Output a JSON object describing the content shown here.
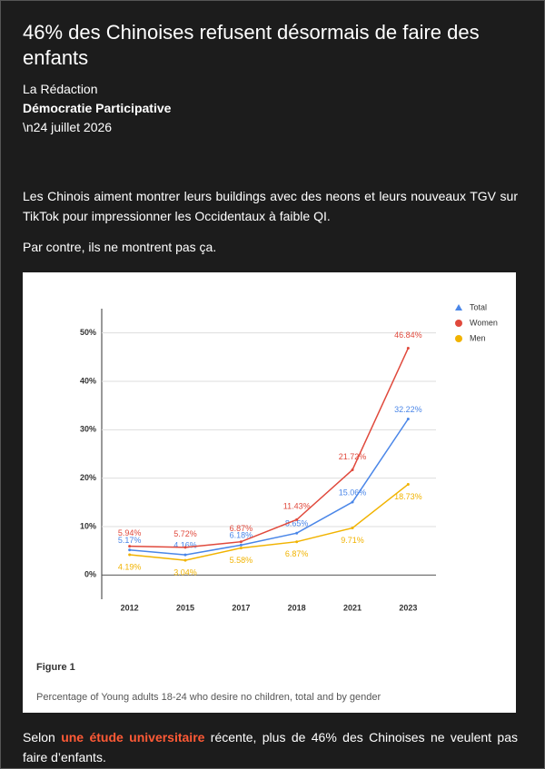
{
  "header": {
    "title": "46% des Chinoises refusent désormais de faire des enfants",
    "author": "La Rédaction",
    "publication": "Démocratie Participative",
    "date": "\\n24 juillet 2026"
  },
  "paragraphs": [
    "Les Chinois aiment montrer leurs buildings avec des neons et leurs nouveaux TGV sur TikTok pour impressionner les Occidentaux à faible QI.",
    "Par contre, ils ne montrent pas ça."
  ],
  "closing": {
    "before": "Selon ",
    "link": "une étude universitaire",
    "after": " récente, plus de 46% des Chinoises ne veulent pas faire d’enfants."
  },
  "figure": {
    "label": "Figure 1",
    "caption": "Percentage of Young adults 18-24 who desire no children, total and by gender"
  },
  "chart_data": {
    "type": "line",
    "categories": [
      "2012",
      "2015",
      "2017",
      "2018",
      "2021",
      "2023"
    ],
    "series": [
      {
        "name": "Total",
        "color": "#4a86e8",
        "values": [
          5.17,
          4.16,
          6.18,
          8.65,
          15.06,
          32.22
        ],
        "value_labels": [
          "5.17%",
          "4.16%",
          "6.18%",
          "8.65%",
          "15.06%",
          "32.22%"
        ]
      },
      {
        "name": "Women",
        "color": "#e0493c",
        "values": [
          5.94,
          5.72,
          6.87,
          11.43,
          21.72,
          46.84
        ],
        "value_labels": [
          "5.94%",
          "5.72%",
          "6.87%",
          "11.43%",
          "21.72%",
          "46.84%"
        ]
      },
      {
        "name": "Men",
        "color": "#f1b300",
        "values": [
          4.19,
          3.04,
          5.58,
          6.87,
          9.71,
          18.73
        ],
        "value_labels": [
          "4.19%",
          "3.04%",
          "5.58%",
          "6.87%",
          "9.71%",
          "18.73%"
        ]
      }
    ],
    "ylim": [
      -5,
      55
    ],
    "yticks": [
      {
        "value": 0,
        "label": "0%"
      },
      {
        "value": 10,
        "label": "10%"
      },
      {
        "value": 20,
        "label": "20%"
      },
      {
        "value": 30,
        "label": "30%"
      },
      {
        "value": 40,
        "label": "40%"
      },
      {
        "value": 50,
        "label": "50%"
      }
    ],
    "grid": true,
    "legend": "top-right"
  }
}
